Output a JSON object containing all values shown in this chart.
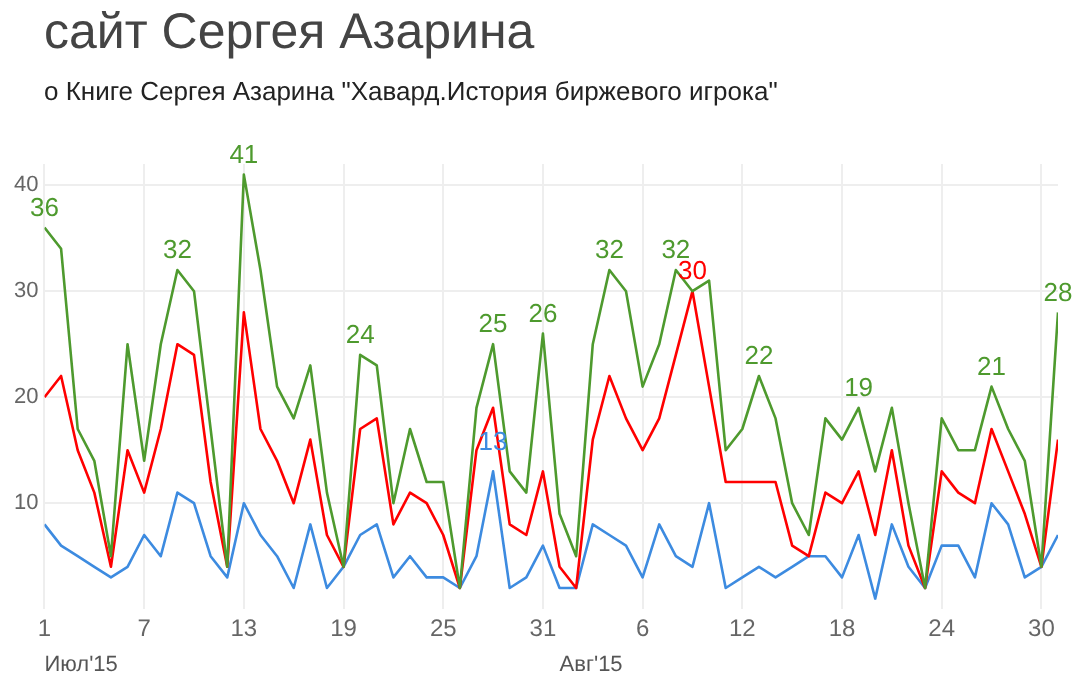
{
  "chart_data": {
    "type": "line",
    "title": "сайт Сергея Азарина",
    "subtitle": "о Книге Сергея Азарина \"Хавард.История биржевого игрока\"",
    "x": [
      "2015-07-01",
      "2015-07-02",
      "2015-07-03",
      "2015-07-04",
      "2015-07-05",
      "2015-07-06",
      "2015-07-07",
      "2015-07-08",
      "2015-07-09",
      "2015-07-10",
      "2015-07-11",
      "2015-07-12",
      "2015-07-13",
      "2015-07-14",
      "2015-07-15",
      "2015-07-16",
      "2015-07-17",
      "2015-07-18",
      "2015-07-19",
      "2015-07-20",
      "2015-07-21",
      "2015-07-22",
      "2015-07-23",
      "2015-07-24",
      "2015-07-25",
      "2015-07-26",
      "2015-07-27",
      "2015-07-28",
      "2015-07-29",
      "2015-07-30",
      "2015-07-31",
      "2015-08-01",
      "2015-08-02",
      "2015-08-03",
      "2015-08-04",
      "2015-08-05",
      "2015-08-06",
      "2015-08-07",
      "2015-08-08",
      "2015-08-09",
      "2015-08-10",
      "2015-08-11",
      "2015-08-12",
      "2015-08-13",
      "2015-08-14",
      "2015-08-15",
      "2015-08-16",
      "2015-08-17",
      "2015-08-18",
      "2015-08-19",
      "2015-08-20",
      "2015-08-21",
      "2015-08-22",
      "2015-08-23",
      "2015-08-24",
      "2015-08-25",
      "2015-08-26",
      "2015-08-27",
      "2015-08-28",
      "2015-08-29",
      "2015-08-30",
      "2015-08-31"
    ],
    "series": [
      {
        "color": "#4e9a2e",
        "values": [
          36,
          34,
          17,
          14,
          5,
          25,
          14,
          25,
          32,
          30,
          17,
          4,
          41,
          32,
          21,
          18,
          23,
          11,
          4,
          24,
          23,
          10,
          17,
          12,
          12,
          2,
          19,
          25,
          13,
          11,
          26,
          9,
          5,
          25,
          32,
          30,
          21,
          25,
          32,
          30,
          31,
          15,
          17,
          22,
          18,
          10,
          7,
          18,
          16,
          19,
          13,
          19,
          10,
          2,
          18,
          15,
          15,
          21,
          17,
          14,
          4,
          28
        ],
        "value_labels": [
          "36",
          null,
          null,
          null,
          null,
          null,
          null,
          null,
          "32",
          null,
          null,
          null,
          "41",
          null,
          null,
          null,
          null,
          null,
          null,
          "24",
          null,
          null,
          null,
          null,
          null,
          null,
          null,
          "25",
          null,
          null,
          "26",
          null,
          null,
          null,
          "32",
          null,
          null,
          null,
          "32",
          null,
          null,
          null,
          null,
          "22",
          null,
          null,
          null,
          null,
          null,
          "19",
          null,
          null,
          null,
          null,
          null,
          null,
          null,
          "21",
          null,
          null,
          null,
          "28"
        ]
      },
      {
        "color": "#ff0000",
        "values": [
          20,
          22,
          15,
          11,
          4,
          15,
          11,
          17,
          25,
          24,
          12,
          4,
          28,
          17,
          14,
          10,
          16,
          7,
          4,
          17,
          18,
          8,
          11,
          10,
          7,
          2,
          15,
          19,
          8,
          7,
          13,
          4,
          2,
          16,
          22,
          18,
          15,
          18,
          24,
          30,
          21,
          12,
          12,
          12,
          12,
          6,
          5,
          11,
          10,
          13,
          7,
          15,
          6,
          2,
          13,
          11,
          10,
          17,
          13,
          9,
          4,
          16
        ],
        "value_labels": [
          null,
          null,
          null,
          null,
          null,
          null,
          null,
          null,
          null,
          null,
          null,
          null,
          null,
          null,
          null,
          null,
          null,
          null,
          null,
          null,
          null,
          null,
          null,
          null,
          null,
          null,
          null,
          null,
          null,
          null,
          null,
          null,
          null,
          null,
          null,
          null,
          null,
          null,
          null,
          "30",
          null,
          null,
          null,
          null,
          null,
          null,
          null,
          null,
          null,
          null,
          null,
          null,
          null,
          null,
          null,
          null,
          null,
          null,
          null,
          null,
          null,
          null
        ]
      },
      {
        "color": "#3d8be0",
        "values": [
          8,
          6,
          5,
          4,
          3,
          4,
          7,
          5,
          11,
          10,
          5,
          3,
          10,
          7,
          5,
          2,
          8,
          2,
          4,
          7,
          8,
          3,
          5,
          3,
          3,
          2,
          5,
          13,
          2,
          3,
          6,
          2,
          2,
          8,
          7,
          6,
          3,
          8,
          5,
          4,
          10,
          2,
          3,
          4,
          3,
          4,
          5,
          5,
          3,
          7,
          1,
          8,
          4,
          2,
          6,
          6,
          3,
          10,
          8,
          3,
          4,
          7
        ],
        "value_labels": [
          null,
          null,
          null,
          null,
          null,
          null,
          null,
          null,
          null,
          null,
          null,
          null,
          null,
          null,
          null,
          null,
          null,
          null,
          null,
          null,
          null,
          null,
          null,
          null,
          null,
          null,
          null,
          "13",
          null,
          null,
          null,
          null,
          null,
          null,
          null,
          null,
          null,
          null,
          null,
          null,
          null,
          null,
          null,
          null,
          null,
          null,
          null,
          null,
          null,
          null,
          null,
          null,
          null,
          null,
          null,
          null,
          null,
          null,
          null,
          null,
          null,
          null
        ]
      }
    ],
    "xlim": [
      "2015-07-01",
      "2015-08-31"
    ],
    "xticks": [
      {
        "value": "2015-07-01",
        "label": "1"
      },
      {
        "value": "2015-07-07",
        "label": "7"
      },
      {
        "value": "2015-07-13",
        "label": "13"
      },
      {
        "value": "2015-07-19",
        "label": "19"
      },
      {
        "value": "2015-07-25",
        "label": "25"
      },
      {
        "value": "2015-07-31",
        "label": "31"
      },
      {
        "value": "2015-08-06",
        "label": "6"
      },
      {
        "value": "2015-08-12",
        "label": "12"
      },
      {
        "value": "2015-08-18",
        "label": "18"
      },
      {
        "value": "2015-08-24",
        "label": "24"
      },
      {
        "value": "2015-08-30",
        "label": "30"
      }
    ],
    "ylim": [
      0,
      42
    ],
    "yticks": [
      10,
      20,
      30,
      40
    ],
    "annotations": [
      "Июл'15",
      "Авг'15"
    ],
    "grid": true,
    "legend": false,
    "marker": "none",
    "line_style": "solid"
  }
}
